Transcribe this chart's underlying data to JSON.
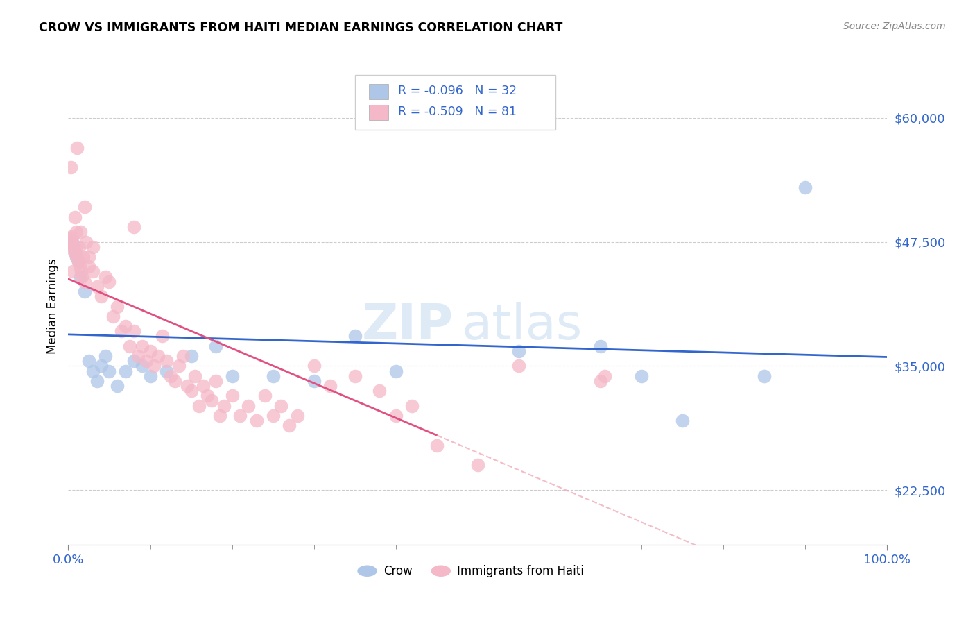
{
  "title": "CROW VS IMMIGRANTS FROM HAITI MEDIAN EARNINGS CORRELATION CHART",
  "source": "Source: ZipAtlas.com",
  "ylabel": "Median Earnings",
  "yticks": [
    22500,
    35000,
    47500,
    60000
  ],
  "ytick_labels": [
    "$22,500",
    "$35,000",
    "$47,500",
    "$60,000"
  ],
  "legend_label1": "Crow",
  "legend_label2": "Immigrants from Haiti",
  "R1": "-0.096",
  "N1": "32",
  "R2": "-0.509",
  "N2": "81",
  "color_crow": "#aec6e8",
  "color_haiti": "#f4b8c8",
  "color_crow_line": "#3366cc",
  "color_haiti_line": "#e05080",
  "watermark_zip": "ZIP",
  "watermark_atlas": "atlas",
  "crow_points": [
    [
      0.4,
      47500
    ],
    [
      0.6,
      47200
    ],
    [
      0.8,
      46500
    ],
    [
      1.0,
      46000
    ],
    [
      1.2,
      45500
    ],
    [
      1.5,
      44000
    ],
    [
      2.0,
      42500
    ],
    [
      2.5,
      35500
    ],
    [
      3.0,
      34500
    ],
    [
      3.5,
      33500
    ],
    [
      4.0,
      35000
    ],
    [
      4.5,
      36000
    ],
    [
      5.0,
      34500
    ],
    [
      6.0,
      33000
    ],
    [
      7.0,
      34500
    ],
    [
      8.0,
      35500
    ],
    [
      9.0,
      35000
    ],
    [
      10.0,
      34000
    ],
    [
      12.0,
      34500
    ],
    [
      15.0,
      36000
    ],
    [
      18.0,
      37000
    ],
    [
      20.0,
      34000
    ],
    [
      25.0,
      34000
    ],
    [
      30.0,
      33500
    ],
    [
      35.0,
      38000
    ],
    [
      40.0,
      34500
    ],
    [
      55.0,
      36500
    ],
    [
      65.0,
      37000
    ],
    [
      70.0,
      34000
    ],
    [
      75.0,
      29500
    ],
    [
      85.0,
      34000
    ],
    [
      90.0,
      53000
    ]
  ],
  "haiti_points": [
    [
      0.2,
      47500
    ],
    [
      0.25,
      47800
    ],
    [
      0.3,
      55000
    ],
    [
      0.35,
      47200
    ],
    [
      0.4,
      48000
    ],
    [
      0.5,
      47800
    ],
    [
      0.55,
      44500
    ],
    [
      0.6,
      47000
    ],
    [
      0.7,
      46500
    ],
    [
      0.8,
      50000
    ],
    [
      0.9,
      46800
    ],
    [
      1.0,
      48500
    ],
    [
      1.0,
      46000
    ],
    [
      1.1,
      57000
    ],
    [
      1.2,
      45500
    ],
    [
      1.3,
      47000
    ],
    [
      1.4,
      45000
    ],
    [
      1.5,
      48500
    ],
    [
      1.6,
      44500
    ],
    [
      1.7,
      44000
    ],
    [
      1.8,
      46000
    ],
    [
      2.0,
      51000
    ],
    [
      2.0,
      43500
    ],
    [
      2.2,
      47500
    ],
    [
      2.5,
      46000
    ],
    [
      2.5,
      45000
    ],
    [
      3.0,
      47000
    ],
    [
      3.0,
      44500
    ],
    [
      3.5,
      43000
    ],
    [
      4.0,
      42000
    ],
    [
      4.5,
      44000
    ],
    [
      5.0,
      43500
    ],
    [
      5.5,
      40000
    ],
    [
      6.0,
      41000
    ],
    [
      6.5,
      38500
    ],
    [
      7.0,
      39000
    ],
    [
      7.5,
      37000
    ],
    [
      8.0,
      38500
    ],
    [
      8.0,
      49000
    ],
    [
      8.5,
      36000
    ],
    [
      9.0,
      37000
    ],
    [
      9.5,
      35500
    ],
    [
      10.0,
      36500
    ],
    [
      10.5,
      35000
    ],
    [
      11.0,
      36000
    ],
    [
      11.5,
      38000
    ],
    [
      12.0,
      35500
    ],
    [
      12.5,
      34000
    ],
    [
      13.0,
      33500
    ],
    [
      13.5,
      35000
    ],
    [
      14.0,
      36000
    ],
    [
      14.5,
      33000
    ],
    [
      15.0,
      32500
    ],
    [
      15.5,
      34000
    ],
    [
      16.0,
      31000
    ],
    [
      16.5,
      33000
    ],
    [
      17.0,
      32000
    ],
    [
      17.5,
      31500
    ],
    [
      18.0,
      33500
    ],
    [
      18.5,
      30000
    ],
    [
      19.0,
      31000
    ],
    [
      20.0,
      32000
    ],
    [
      21.0,
      30000
    ],
    [
      22.0,
      31000
    ],
    [
      23.0,
      29500
    ],
    [
      24.0,
      32000
    ],
    [
      25.0,
      30000
    ],
    [
      26.0,
      31000
    ],
    [
      27.0,
      29000
    ],
    [
      28.0,
      30000
    ],
    [
      30.0,
      35000
    ],
    [
      32.0,
      33000
    ],
    [
      35.0,
      34000
    ],
    [
      38.0,
      32500
    ],
    [
      40.0,
      30000
    ],
    [
      42.0,
      31000
    ],
    [
      45.0,
      27000
    ],
    [
      50.0,
      25000
    ],
    [
      55.0,
      35000
    ],
    [
      65.0,
      33500
    ],
    [
      65.5,
      34000
    ]
  ],
  "xmin": 0,
  "xmax": 100,
  "ymin": 17000,
  "ymax": 65000
}
